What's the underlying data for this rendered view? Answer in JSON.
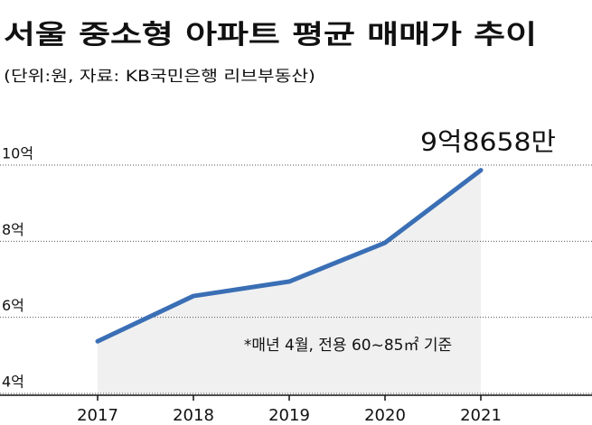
{
  "chart_data": {
    "type": "line",
    "title": "서울 중소형 아파트 평균 매매가 추이",
    "subtitle": "(단위:원, 자료: KB국민은행 리브부동산)",
    "annotation": "*매년 4월, 전용 60~85㎡ 기준",
    "categories": [
      "2017",
      "2018",
      "2019",
      "2020",
      "2021"
    ],
    "series": [
      {
        "name": "평균 매매가",
        "color": "#3a6fb5",
        "values": [
          5.37,
          6.56,
          6.94,
          7.96,
          9.8658
        ],
        "value_labels": [
          null,
          null,
          null,
          null,
          "9억8658만"
        ]
      }
    ],
    "ylim": [
      4,
      10
    ],
    "yticks": [
      {
        "value": 4,
        "label": "4억"
      },
      {
        "value": 6,
        "label": "6억"
      },
      {
        "value": 8,
        "label": "8억"
      },
      {
        "value": 10,
        "label": "10억"
      }
    ],
    "grid": true,
    "area_fill": "#f0f0f0"
  }
}
